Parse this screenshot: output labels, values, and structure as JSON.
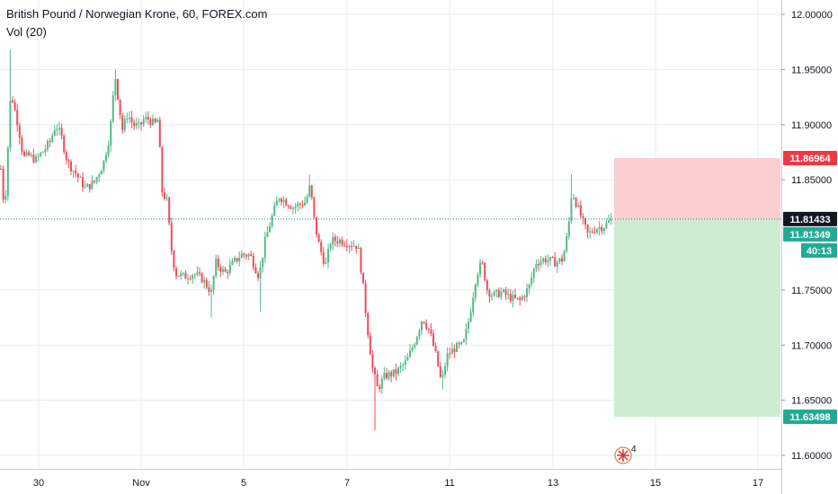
{
  "legend": {
    "title": "British Pound / Norwegian Krone, 60, FOREX.com",
    "indicator": "Vol (20)"
  },
  "colors": {
    "up": "#53b987",
    "down": "#eb4d5c",
    "grid": "#e8ebef",
    "last_price_tag": "#131722",
    "stop_tag": "#f23645",
    "target_tag": "#22ab94",
    "stop_zone": "#fbcfd2",
    "target_zone": "#cdecd1"
  },
  "badge_count": "4",
  "chart_data": {
    "type": "candlestick",
    "title": "British Pound / Norwegian Krone, 60, FOREX.com",
    "xlabel": "",
    "ylabel": "",
    "x_tick_labels": [
      "30",
      "Nov",
      "5",
      "7",
      "11",
      "13",
      "15",
      "17"
    ],
    "y_tick_labels": [
      "12.00000",
      "11.95000",
      "11.90000",
      "11.85000",
      "11.75000",
      "11.70000",
      "11.65000",
      "11.60000"
    ],
    "ylim": [
      11.594,
      12.007
    ],
    "grid": true,
    "legend_position": "top-left",
    "path_points": [
      [
        0,
        11.87
      ],
      [
        5,
        11.82
      ],
      [
        12,
        11.93
      ],
      [
        16,
        11.915
      ],
      [
        20,
        11.9
      ],
      [
        26,
        11.87
      ],
      [
        32,
        11.872
      ],
      [
        40,
        11.868
      ],
      [
        50,
        11.878
      ],
      [
        56,
        11.885
      ],
      [
        62,
        11.9
      ],
      [
        68,
        11.89
      ],
      [
        75,
        11.866
      ],
      [
        85,
        11.855
      ],
      [
        95,
        11.842
      ],
      [
        105,
        11.848
      ],
      [
        115,
        11.865
      ],
      [
        122,
        11.89
      ],
      [
        128,
        11.945
      ],
      [
        132,
        11.92
      ],
      [
        136,
        11.895
      ],
      [
        142,
        11.91
      ],
      [
        148,
        11.9
      ],
      [
        155,
        11.898
      ],
      [
        160,
        11.905
      ],
      [
        165,
        11.905
      ],
      [
        172,
        11.9
      ],
      [
        176,
        11.905
      ],
      [
        180,
        11.84
      ],
      [
        186,
        11.83
      ],
      [
        190,
        11.79
      ],
      [
        195,
        11.765
      ],
      [
        205,
        11.762
      ],
      [
        215,
        11.765
      ],
      [
        225,
        11.76
      ],
      [
        235,
        11.748
      ],
      [
        240,
        11.775
      ],
      [
        250,
        11.765
      ],
      [
        260,
        11.775
      ],
      [
        268,
        11.782
      ],
      [
        278,
        11.782
      ],
      [
        288,
        11.762
      ],
      [
        295,
        11.795
      ],
      [
        302,
        11.815
      ],
      [
        310,
        11.835
      ],
      [
        318,
        11.83
      ],
      [
        326,
        11.825
      ],
      [
        334,
        11.828
      ],
      [
        340,
        11.83
      ],
      [
        345,
        11.845
      ],
      [
        350,
        11.81
      ],
      [
        355,
        11.79
      ],
      [
        362,
        11.772
      ],
      [
        368,
        11.795
      ],
      [
        378,
        11.795
      ],
      [
        388,
        11.792
      ],
      [
        398,
        11.79
      ],
      [
        403,
        11.76
      ],
      [
        408,
        11.72
      ],
      [
        414,
        11.68
      ],
      [
        420,
        11.66
      ],
      [
        428,
        11.672
      ],
      [
        440,
        11.675
      ],
      [
        452,
        11.685
      ],
      [
        462,
        11.705
      ],
      [
        470,
        11.725
      ],
      [
        478,
        11.712
      ],
      [
        485,
        11.69
      ],
      [
        491,
        11.665
      ],
      [
        497,
        11.69
      ],
      [
        505,
        11.697
      ],
      [
        515,
        11.7
      ],
      [
        522,
        11.725
      ],
      [
        530,
        11.765
      ],
      [
        536,
        11.775
      ],
      [
        542,
        11.75
      ],
      [
        548,
        11.745
      ],
      [
        558,
        11.748
      ],
      [
        568,
        11.743
      ],
      [
        578,
        11.74
      ],
      [
        588,
        11.752
      ],
      [
        596,
        11.775
      ],
      [
        606,
        11.778
      ],
      [
        618,
        11.775
      ],
      [
        626,
        11.778
      ],
      [
        632,
        11.805
      ],
      [
        636,
        11.84
      ],
      [
        642,
        11.826
      ],
      [
        648,
        11.812
      ],
      [
        654,
        11.8
      ],
      [
        662,
        11.806
      ],
      [
        672,
        11.808
      ],
      [
        680,
        11.814
      ]
    ],
    "last_price": 11.81433,
    "position": {
      "side": "short",
      "entry": 11.81433,
      "stop_loss": 11.86964,
      "take_profit": 11.63498
    },
    "price_tags": [
      {
        "value": 11.86964,
        "label": "11.86964",
        "kind": "stop"
      },
      {
        "value": 11.81433,
        "label": "11.81433",
        "kind": "last"
      },
      {
        "value": 11.81349,
        "label": "11.81349",
        "kind": "bid"
      },
      {
        "value": 11.63498,
        "label": "11.63498",
        "kind": "target"
      }
    ],
    "countdown": "40:13"
  }
}
